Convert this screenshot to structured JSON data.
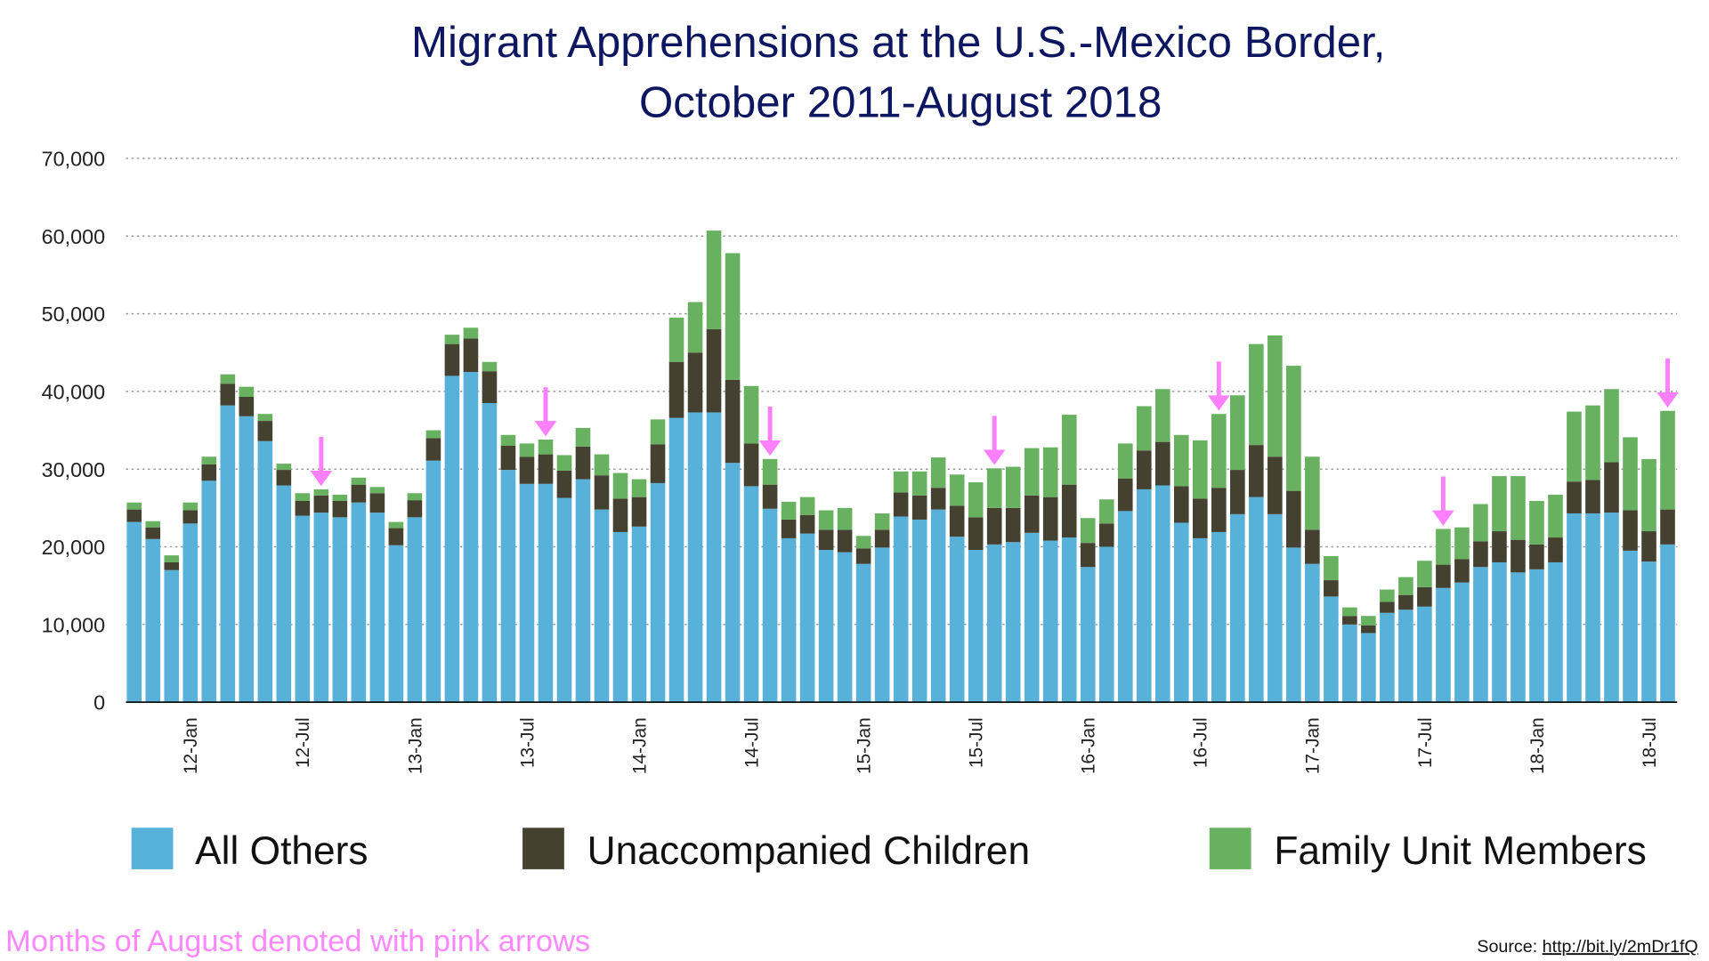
{
  "chart_data": {
    "type": "bar",
    "stacked": true,
    "title": [
      "Migrant Apprehensions at the U.S.-Mexico Border,",
      "October 2011-August 2018"
    ],
    "xlabel": "",
    "ylabel": "",
    "ylim": [
      0,
      70000
    ],
    "yticks": [
      "0",
      "10,000",
      "20,000",
      "30,000",
      "40,000",
      "50,000",
      "60,000",
      "70,000"
    ],
    "grid": "horizontal dotted",
    "legend_position": "bottom",
    "x_tick_labels": [
      "12-Jan",
      "12-Jul",
      "13-Jan",
      "13-Jul",
      "14-Jan",
      "14-Jul",
      "15-Jan",
      "15-Jul",
      "16-Jan",
      "16-Jul",
      "17-Jan",
      "17-Jul",
      "18-Jan",
      "18-Jul"
    ],
    "series": [
      {
        "name": "All Others",
        "color": "#58b1d9",
        "values": [
          23200,
          21000,
          17000,
          23000,
          28500,
          38200,
          36800,
          33600,
          27900,
          24000,
          24400,
          23800,
          25700,
          24400,
          20200,
          23800,
          31100,
          42000,
          42500,
          38500,
          29900,
          28100,
          28100,
          26300,
          28700,
          24800,
          21900,
          22600,
          28200,
          36600,
          37300,
          37300,
          30800,
          27800,
          24900,
          21100,
          21700,
          19600,
          19300,
          17800,
          19900,
          23900,
          23500,
          24800,
          21300,
          19600,
          20300,
          20600,
          21800,
          20800,
          21200,
          17400,
          20000,
          24600,
          27400,
          27900,
          23100,
          21100,
          21900,
          24200,
          26400,
          24200,
          19900,
          17800,
          13600,
          10000,
          8900,
          11500,
          11900,
          12300,
          14700,
          15400,
          17400,
          18000,
          16700,
          17100,
          18000,
          24300,
          24300,
          24400,
          19500,
          18100,
          20300
        ]
      },
      {
        "name": "Unaccompanied Children",
        "color": "#454131",
        "values": [
          1600,
          1500,
          1000,
          1700,
          2100,
          2800,
          2500,
          2600,
          2000,
          1900,
          2200,
          2100,
          2300,
          2500,
          2200,
          2200,
          2900,
          4100,
          4300,
          4100,
          3100,
          3500,
          3800,
          3500,
          4200,
          4400,
          4300,
          3800,
          5000,
          7200,
          7700,
          10700,
          10700,
          5500,
          3100,
          2400,
          2400,
          2600,
          2900,
          2000,
          2300,
          3100,
          3100,
          2800,
          4000,
          4200,
          4700,
          4400,
          4800,
          5600,
          6800,
          3100,
          3000,
          4200,
          5000,
          5600,
          4700,
          5100,
          5700,
          5700,
          6700,
          7400,
          7300,
          4400,
          2100,
          1100,
          1000,
          1400,
          1900,
          2500,
          3000,
          3000,
          3300,
          4000,
          4200,
          3200,
          3200,
          4100,
          4300,
          6500,
          5200,
          3900,
          4500
        ]
      },
      {
        "name": "Family Unit Members",
        "color": "#68b160",
        "values": [
          900,
          800,
          900,
          1000,
          1000,
          1200,
          1300,
          900,
          800,
          1000,
          800,
          800,
          900,
          800,
          800,
          900,
          1000,
          1200,
          1400,
          1200,
          1400,
          1700,
          1900,
          2000,
          2400,
          2700,
          3300,
          2300,
          3200,
          5700,
          6500,
          12700,
          16300,
          7400,
          3300,
          2300,
          2300,
          2500,
          2800,
          1600,
          2100,
          2700,
          3100,
          3900,
          4000,
          4500,
          5100,
          5300,
          6100,
          6400,
          9000,
          3200,
          3100,
          4500,
          5700,
          6800,
          6600,
          7500,
          9500,
          9600,
          13000,
          15600,
          16100,
          9400,
          3100,
          1100,
          1200,
          1600,
          2300,
          3400,
          4600,
          4100,
          4800,
          7100,
          8200,
          5600,
          5500,
          9000,
          9600,
          9400,
          9400,
          9300,
          12700
        ]
      }
    ],
    "august_arrow_color": "#ff80ff"
  },
  "footnote": "Months of August denoted with pink arrows",
  "source": {
    "label": "Source:",
    "link": "http://bit.ly/2mDr1fQ"
  }
}
